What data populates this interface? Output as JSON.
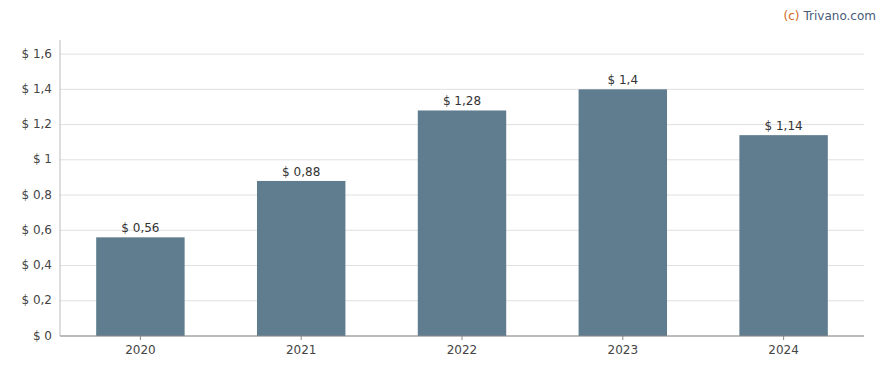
{
  "chart_data": {
    "type": "bar",
    "categories": [
      "2020",
      "2021",
      "2022",
      "2023",
      "2024"
    ],
    "values": [
      0.56,
      0.88,
      1.28,
      1.4,
      1.14
    ],
    "value_labels": [
      "$ 0,56",
      "$ 0,88",
      "$ 1,28",
      "$ 1,4",
      "$ 1,14"
    ],
    "data_labels": true,
    "color": "#5f7d8e",
    "ylim": [
      0,
      1.68
    ],
    "yticks": [
      {
        "value": 0,
        "label": "$ 0"
      },
      {
        "value": 0.2,
        "label": "$ 0,2"
      },
      {
        "value": 0.4,
        "label": "$ 0,4"
      },
      {
        "value": 0.6,
        "label": "$ 0,6"
      },
      {
        "value": 0.8,
        "label": "$ 0,8"
      },
      {
        "value": 1.0,
        "label": "$ 1"
      },
      {
        "value": 1.2,
        "label": "$ 1,2"
      },
      {
        "value": 1.4,
        "label": "$ 1,4"
      },
      {
        "value": 1.6,
        "label": "$ 1,6"
      }
    ],
    "grid": true,
    "annotations": [
      {
        "text": "(c)",
        "color": "#d4681e"
      },
      {
        "text": "Trivano.com",
        "color": "#4a5a7a"
      }
    ]
  }
}
